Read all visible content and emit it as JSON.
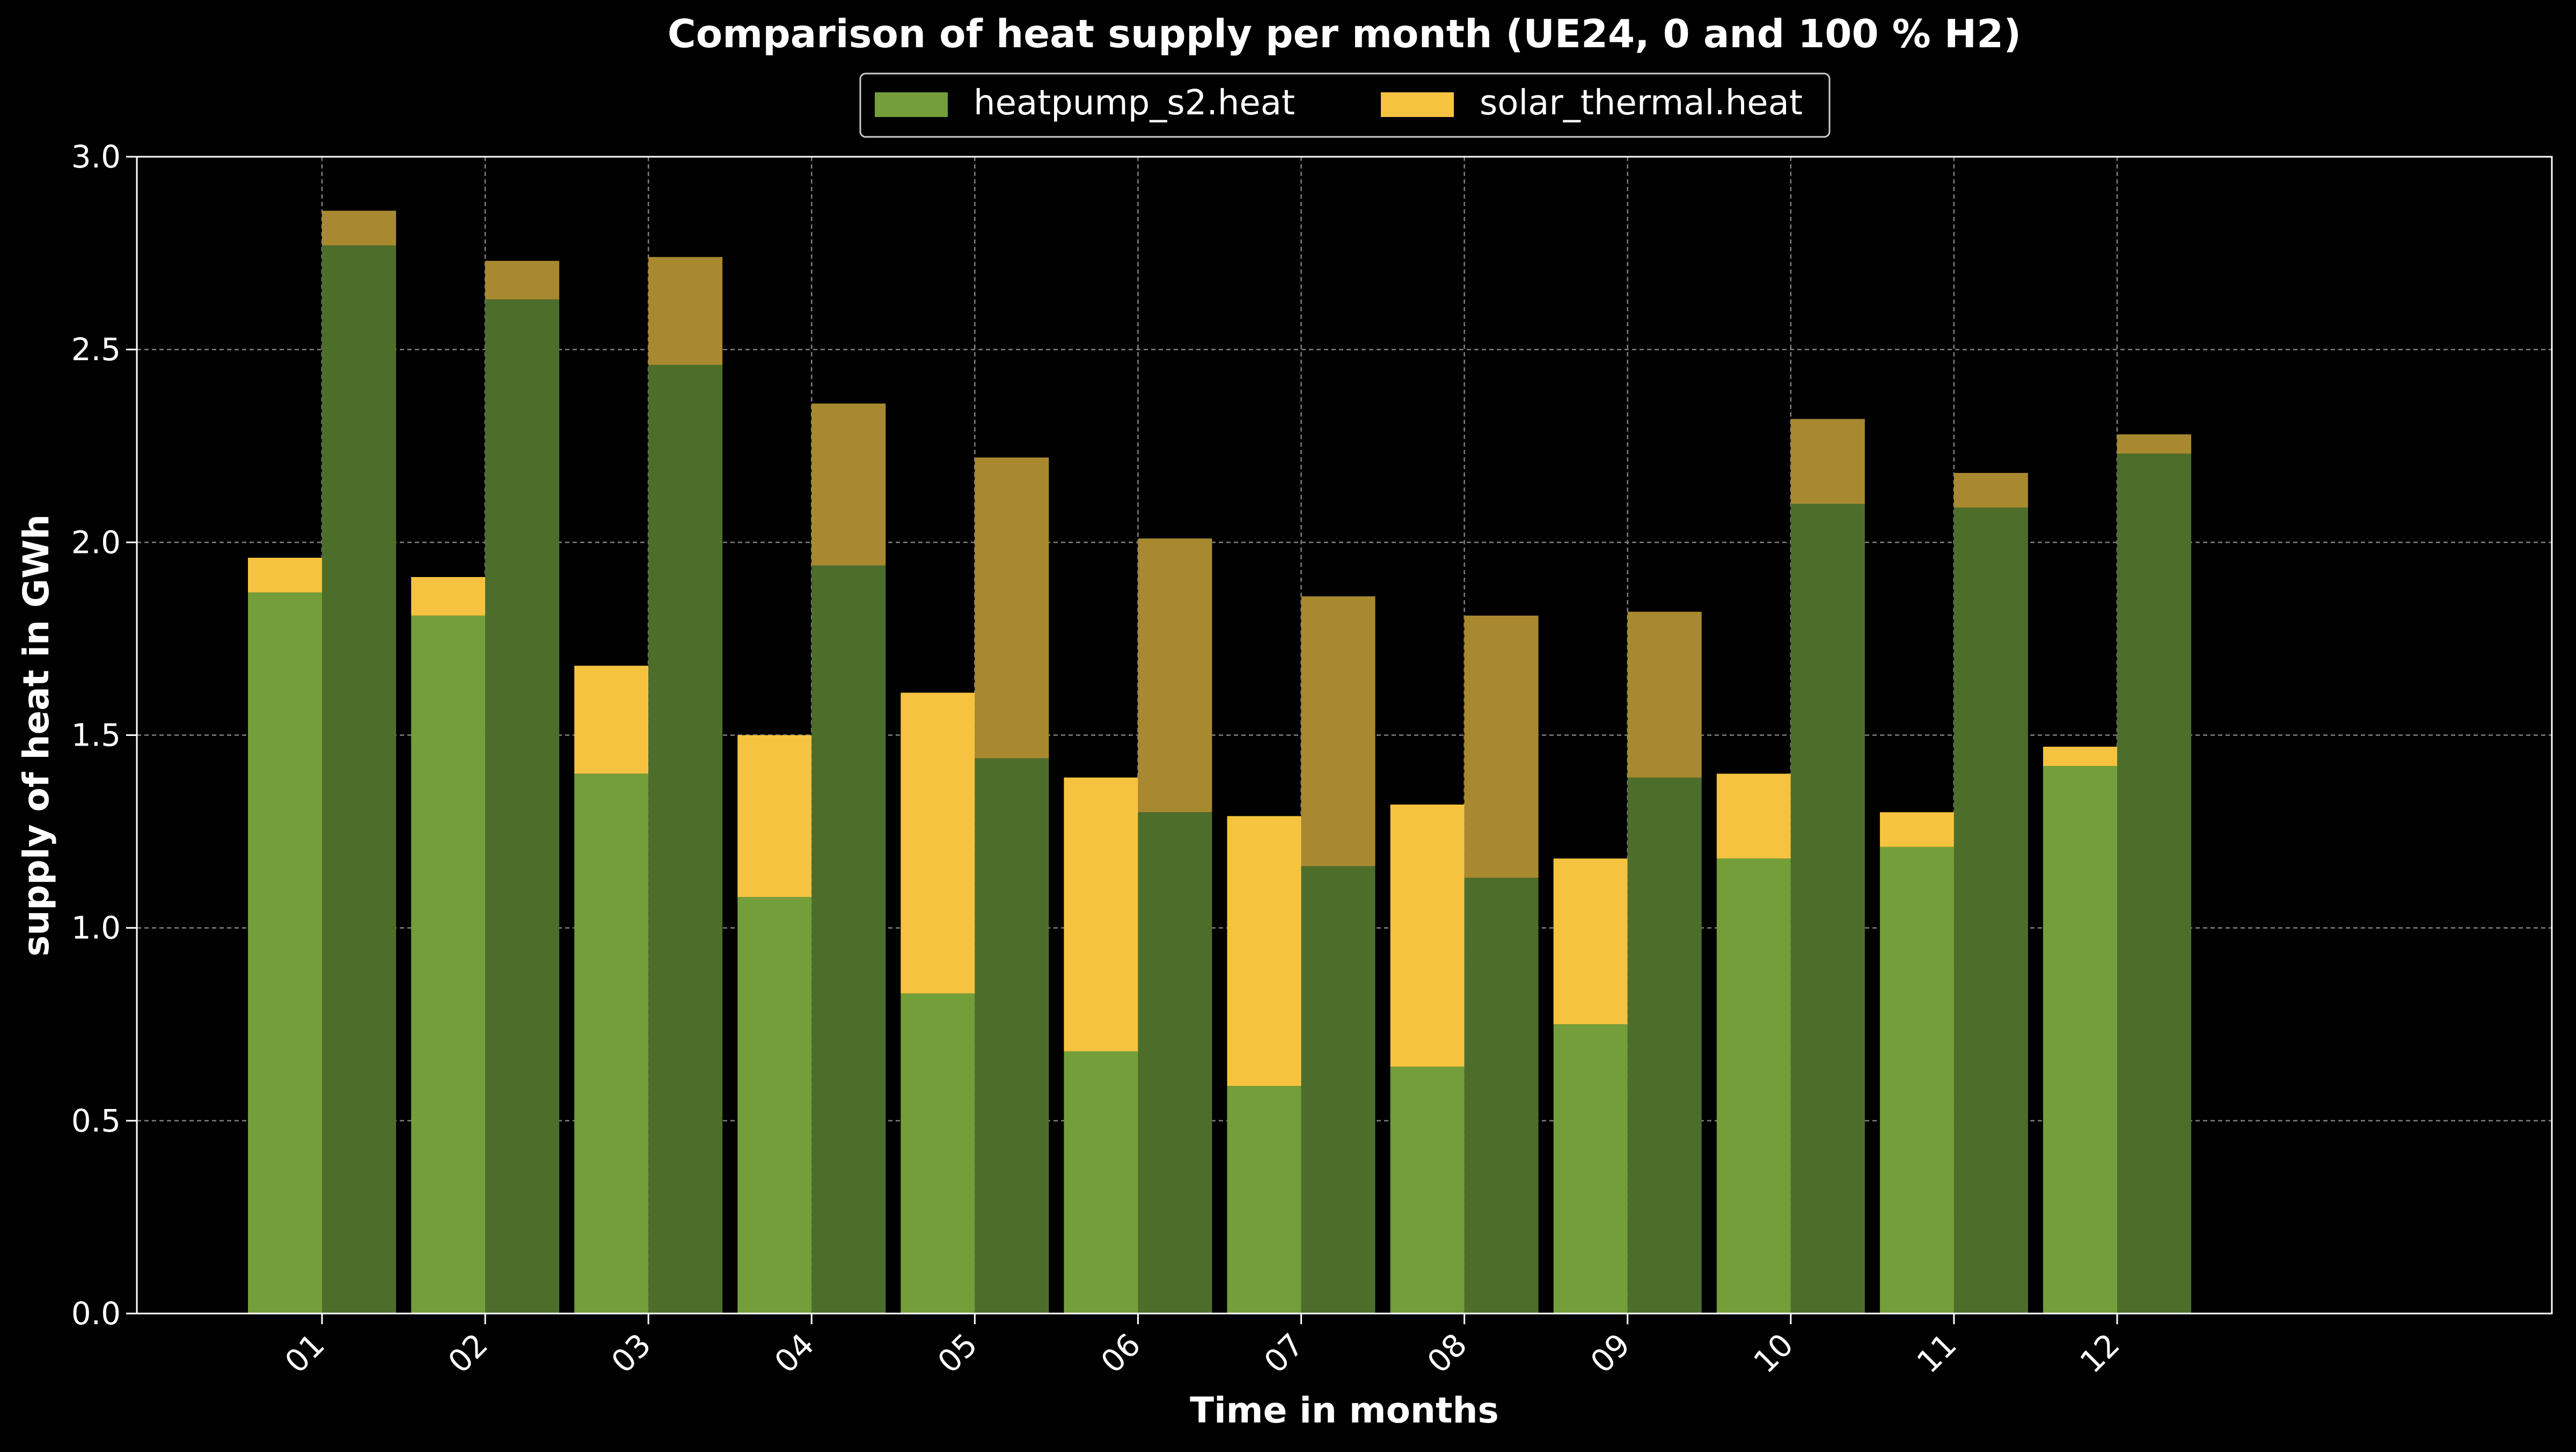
{
  "chart_data": {
    "type": "bar",
    "title": "Comparison of heat supply per month (UE24, 0 and 100 % H2)",
    "xlabel": "Time in months",
    "ylabel": "supply of heat in GWh",
    "categories": [
      "01",
      "02",
      "03",
      "04",
      "05",
      "06",
      "07",
      "08",
      "09",
      "10",
      "11",
      "12"
    ],
    "ylim": [
      0,
      3.0
    ],
    "yticks": [
      "0.0",
      "0.5",
      "1.0",
      "1.5",
      "2.0",
      "2.5",
      "3.0"
    ],
    "grid": true,
    "legend_position": "top-center",
    "legend": [
      "heatpump_s2.heat",
      "solar_thermal.heat"
    ],
    "stacked": true,
    "groups": [
      {
        "scenario": "0 % H2",
        "series": [
          {
            "name": "heatpump_s2.heat",
            "color": "#739e3a",
            "values": [
              1.87,
              1.81,
              1.4,
              1.08,
              0.83,
              0.68,
              0.59,
              0.64,
              0.75,
              1.18,
              1.21,
              1.42
            ]
          },
          {
            "name": "solar_thermal.heat",
            "color": "#f6c341",
            "values": [
              0.09,
              0.1,
              0.28,
              0.42,
              0.78,
              0.71,
              0.7,
              0.68,
              0.43,
              0.22,
              0.09,
              0.05
            ]
          }
        ]
      },
      {
        "scenario": "100 % H2",
        "series": [
          {
            "name": "heatpump_s2.heat",
            "color": "#4d6e2b",
            "values": [
              2.77,
              2.63,
              2.46,
              1.94,
              1.44,
              1.3,
              1.16,
              1.13,
              1.39,
              2.1,
              2.09,
              2.23
            ]
          },
          {
            "name": "solar_thermal.heat",
            "color": "#a88930",
            "values": [
              0.09,
              0.1,
              0.28,
              0.42,
              0.78,
              0.71,
              0.7,
              0.68,
              0.43,
              0.22,
              0.09,
              0.05
            ]
          }
        ]
      }
    ]
  }
}
